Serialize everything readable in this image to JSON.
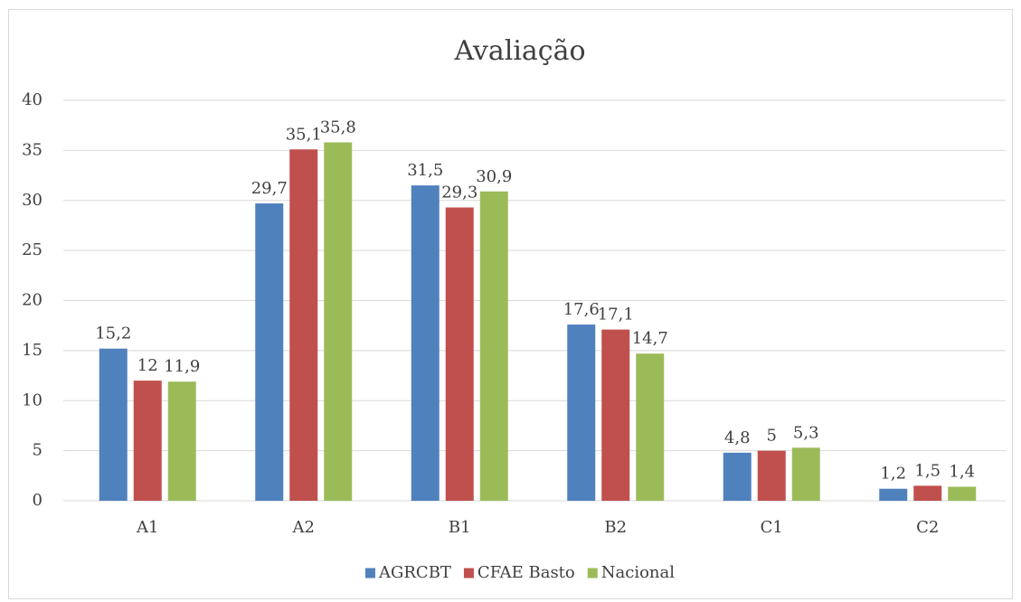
{
  "chart_data": {
    "type": "bar",
    "title": "Avaliação",
    "categories": [
      "A1",
      "A2",
      "B1",
      "B2",
      "C1",
      "C2"
    ],
    "series": [
      {
        "name": "AGRCBT",
        "color": "#4f81bd",
        "values": [
          15.2,
          29.7,
          31.5,
          17.6,
          4.8,
          1.2
        ],
        "value_labels": [
          "15,2",
          "29,7",
          "31,5",
          "17,6",
          "4,8",
          "1,2"
        ]
      },
      {
        "name": "CFAE Basto",
        "color": "#c0504d",
        "values": [
          12,
          35.1,
          29.3,
          17.1,
          5,
          1.5
        ],
        "value_labels": [
          "12",
          "35,1",
          "29,3",
          "17,1",
          "5",
          "1,5"
        ]
      },
      {
        "name": "Nacional",
        "color": "#9bbb59",
        "values": [
          11.9,
          35.8,
          30.9,
          14.7,
          5.3,
          1.4
        ],
        "value_labels": [
          "11,9",
          "35,8",
          "30,9",
          "14,7",
          "5,3",
          "1,4"
        ]
      }
    ],
    "ylim": [
      0,
      40
    ],
    "yticks": [
      0,
      5,
      10,
      15,
      20,
      25,
      30,
      35,
      40
    ],
    "grid": true,
    "legend": "bottom"
  }
}
